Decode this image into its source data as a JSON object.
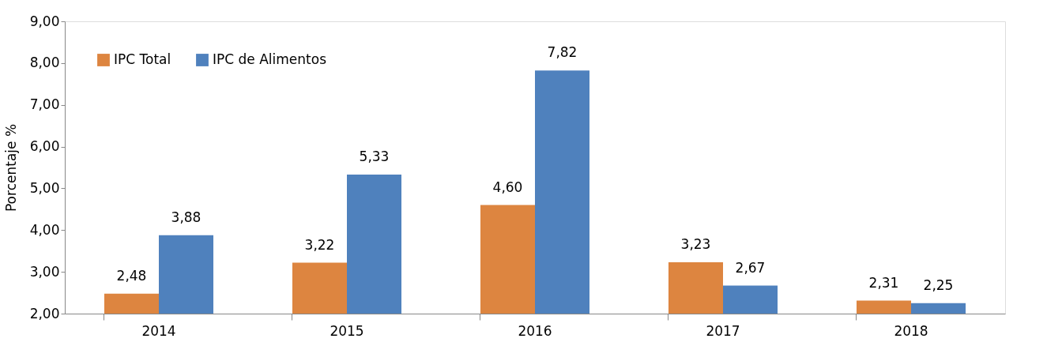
{
  "chart_data": {
    "type": "bar",
    "ylabel": "Porcentaje %",
    "categories": [
      "2014",
      "2015",
      "2016",
      "2017",
      "2018"
    ],
    "series": [
      {
        "name": "IPC Total",
        "color": "#dd8540",
        "values": [
          2.48,
          3.22,
          4.6,
          3.23,
          2.31
        ],
        "value_labels": [
          "2,48",
          "3,22",
          "4,60",
          "3,23",
          "2,31"
        ]
      },
      {
        "name": "IPC de Alimentos",
        "color": "#4f81bd",
        "values": [
          3.88,
          5.33,
          7.82,
          2.67,
          2.25
        ],
        "value_labels": [
          "3,88",
          "5,33",
          "7,82",
          "2,67",
          "2,25"
        ]
      }
    ],
    "ylim": [
      2,
      9
    ],
    "yticks": [
      {
        "value": 2,
        "label": "2,00"
      },
      {
        "value": 3,
        "label": "3,00"
      },
      {
        "value": 4,
        "label": "4,00"
      },
      {
        "value": 5,
        "label": "5,00"
      },
      {
        "value": 6,
        "label": "6,00"
      },
      {
        "value": 7,
        "label": "7,00"
      },
      {
        "value": 8,
        "label": "8,00"
      },
      {
        "value": 9,
        "label": "9,00"
      }
    ],
    "grid": false,
    "legend": "top left"
  }
}
